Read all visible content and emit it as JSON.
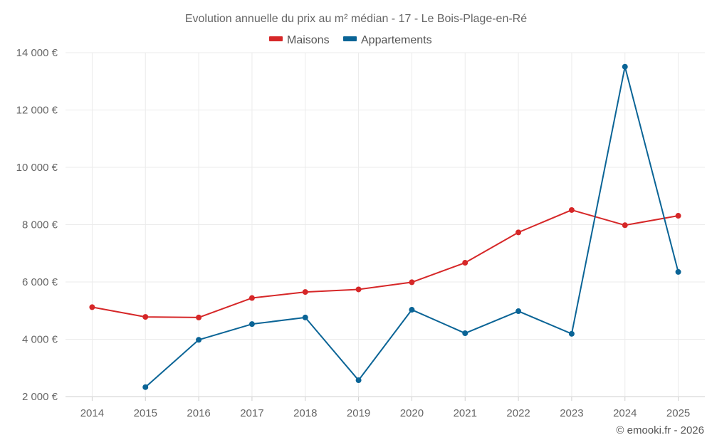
{
  "chart_data": {
    "type": "line",
    "title": "Evolution annuelle du prix au m² médian - 17 - Le Bois-Plage-en-Ré",
    "categories": [
      "2014",
      "2015",
      "2016",
      "2017",
      "2018",
      "2019",
      "2020",
      "2021",
      "2022",
      "2023",
      "2024",
      "2025"
    ],
    "series": [
      {
        "name": "Maisons",
        "color": "#d62728",
        "values": [
          5120,
          4780,
          4760,
          5440,
          5650,
          5740,
          5990,
          6670,
          7730,
          8510,
          7980,
          8310
        ]
      },
      {
        "name": "Appartements",
        "color": "#0a6496",
        "values": [
          null,
          2330,
          3980,
          4530,
          4760,
          2570,
          5030,
          4210,
          4980,
          4190,
          13510,
          6350
        ]
      }
    ],
    "ylim": [
      2000,
      14000
    ],
    "yticks": [
      2000,
      4000,
      6000,
      8000,
      10000,
      12000,
      14000
    ],
    "ytick_labels": [
      "2 000 €",
      "4 000 €",
      "6 000 €",
      "8 000 €",
      "10 000 €",
      "12 000 €",
      "14 000 €"
    ],
    "xlabel": "",
    "ylabel": "",
    "grid": true,
    "legend_position": "top-center"
  },
  "copyright": "© emooki.fr - 2026"
}
